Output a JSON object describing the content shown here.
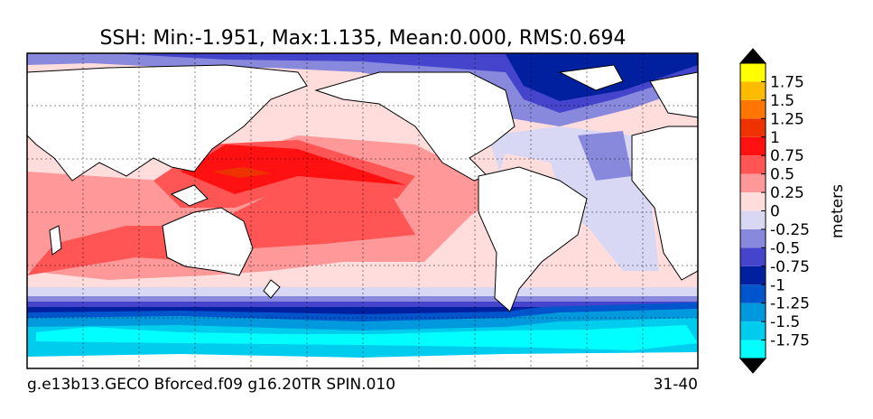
{
  "title": "SSH: Min:-1.951, Max:1.135, Mean:0.000, RMS:0.694",
  "footer_left": "g.e13b13.GECO Bforced.f09 g16.20TR SPIN.010",
  "footer_right": "31-40",
  "colorbar": {
    "label": "meters",
    "lim": [
      -2,
      2
    ],
    "ticks": [
      -1.75,
      -1.5,
      -1.25,
      -1,
      -0.75,
      -0.5,
      -0.25,
      0,
      0.25,
      0.5,
      0.75,
      1,
      1.25,
      1.5,
      1.75
    ],
    "colors": [
      "#00ffff",
      "#00ccee",
      "#0099dd",
      "#0055cc",
      "#0020a0",
      "#4444cc",
      "#8888dd",
      "#d8d8f4",
      "#ffdddd",
      "#ff9999",
      "#ff5555",
      "#ff1111",
      "#ee3300",
      "#ff7700",
      "#ffbb00",
      "#ffff00"
    ],
    "extend_color": "#000000"
  }
}
